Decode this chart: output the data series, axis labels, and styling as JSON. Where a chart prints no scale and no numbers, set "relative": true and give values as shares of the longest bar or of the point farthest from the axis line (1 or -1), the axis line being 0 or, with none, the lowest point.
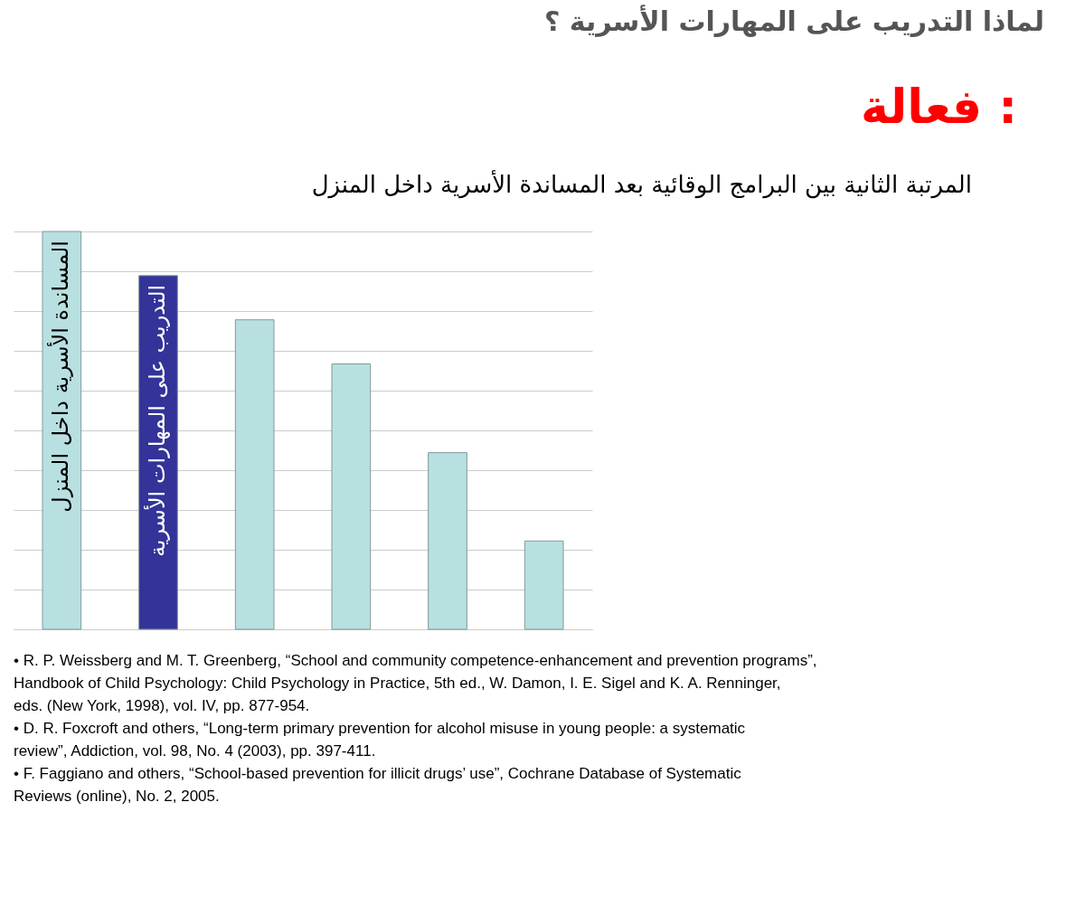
{
  "chart_data": {
    "type": "bar",
    "title": "لماذا التدريب على المهارات الأسرية ؟",
    "subtitle": "فعالة :",
    "xlabel": "المرتبة الثانية بين البرامج الوقائية بعد المساندة الأسرية داخل المنزل",
    "categories": [
      "المساندة الأسرية داخل المنزل",
      "التدريب على المهارات الأسرية",
      null,
      null,
      null,
      null
    ],
    "values": [
      1,
      0.889,
      0.778,
      0.667,
      0.444,
      0.222
    ],
    "colors": [
      "#b9e0e0",
      "#333399",
      "#b9e0e0",
      "#b9e0e0",
      "#b9e0e0",
      "#b9e0e0"
    ],
    "relative": true,
    "grid": true,
    "tick_labels": false,
    "annotations": [
      "• R. P. Weissberg and M. T. Greenberg, “School and community competence-enhancement and prevention programs”, Handbook of Child Psychology: Child Psychology in Practice, 5th ed., W. Damon, I. E. Sigel and K. A. Renninger, eds. (New York, 1998), vol. IV, pp. 877-954.",
      "• D. R. Foxcroft and others, “Long-term primary prevention for alcohol misuse in young people: a systematic review”, Addiction, vol. 98, No. 4 (2003), pp. 397-411.",
      "• F. Faggiano and others, “School-based prevention for illicit drugs’ use”, Cochrane Database of Systematic Reviews (online), No. 2, 2005."
    ]
  }
}
